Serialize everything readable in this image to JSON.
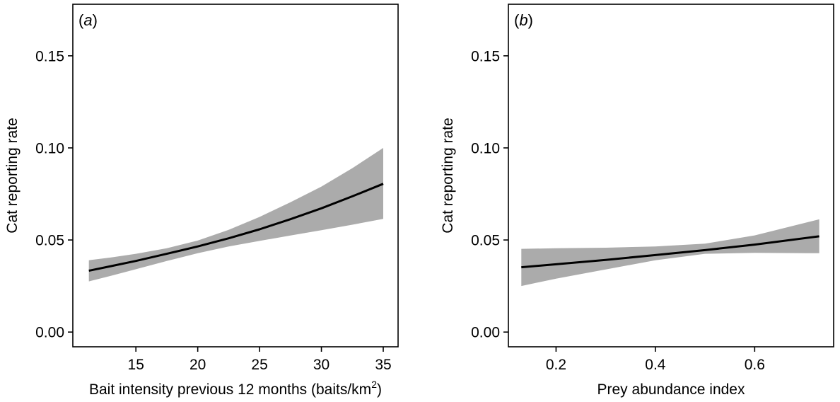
{
  "chart_data": [
    {
      "type": "line",
      "panel_label": "a",
      "xlabel": "Bait intensity previous 12 months (baits/km",
      "xlabel_superscript": "2",
      "xlabel_suffix": ")",
      "ylabel": "Cat reporting rate",
      "xlim": [
        9.9,
        36.2
      ],
      "ylim": [
        -0.008,
        0.178
      ],
      "xticks": [
        15,
        20,
        25,
        30,
        35
      ],
      "xtick_labels": [
        "15",
        "20",
        "25",
        "30",
        "35"
      ],
      "yticks": [
        0.0,
        0.05,
        0.1,
        0.15
      ],
      "ytick_labels": [
        "0.00",
        "0.05",
        "0.10",
        "0.15"
      ],
      "grid": false,
      "ribbon_color": "#ababab",
      "line_color": "#000000",
      "series": [
        {
          "x": [
            11.2,
            13,
            15,
            17.5,
            20,
            22.5,
            25,
            27.5,
            30,
            32.5,
            35
          ],
          "y": [
            0.0333,
            0.0358,
            0.0386,
            0.0425,
            0.0465,
            0.0509,
            0.0558,
            0.0613,
            0.0672,
            0.0737,
            0.0805
          ],
          "lower": [
            0.0275,
            0.0306,
            0.0341,
            0.0386,
            0.0428,
            0.0465,
            0.0495,
            0.0524,
            0.0553,
            0.0583,
            0.0615
          ],
          "upper": [
            0.039,
            0.0405,
            0.0425,
            0.0455,
            0.0497,
            0.0555,
            0.0625,
            0.0705,
            0.079,
            0.089,
            0.1
          ]
        }
      ]
    },
    {
      "type": "line",
      "panel_label": "b",
      "xlabel": "Prey abundance index",
      "ylabel": "Cat reporting rate",
      "xlim": [
        0.104,
        0.759
      ],
      "ylim": [
        -0.008,
        0.178
      ],
      "xticks": [
        0.2,
        0.4,
        0.6
      ],
      "xtick_labels": [
        "0.2",
        "0.4",
        "0.6"
      ],
      "yticks": [
        0.0,
        0.05,
        0.1,
        0.15
      ],
      "ytick_labels": [
        "0.00",
        "0.05",
        "0.10",
        "0.15"
      ],
      "grid": false,
      "ribbon_color": "#ababab",
      "line_color": "#000000",
      "series": [
        {
          "x": [
            0.13,
            0.2,
            0.3,
            0.4,
            0.5,
            0.6,
            0.73
          ],
          "y": [
            0.0352,
            0.0368,
            0.0392,
            0.0418,
            0.0445,
            0.0475,
            0.052
          ],
          "lower": [
            0.025,
            0.029,
            0.034,
            0.039,
            0.0425,
            0.043,
            0.0428
          ],
          "upper": [
            0.0452,
            0.0455,
            0.0458,
            0.0465,
            0.048,
            0.0525,
            0.0612
          ]
        }
      ]
    }
  ]
}
